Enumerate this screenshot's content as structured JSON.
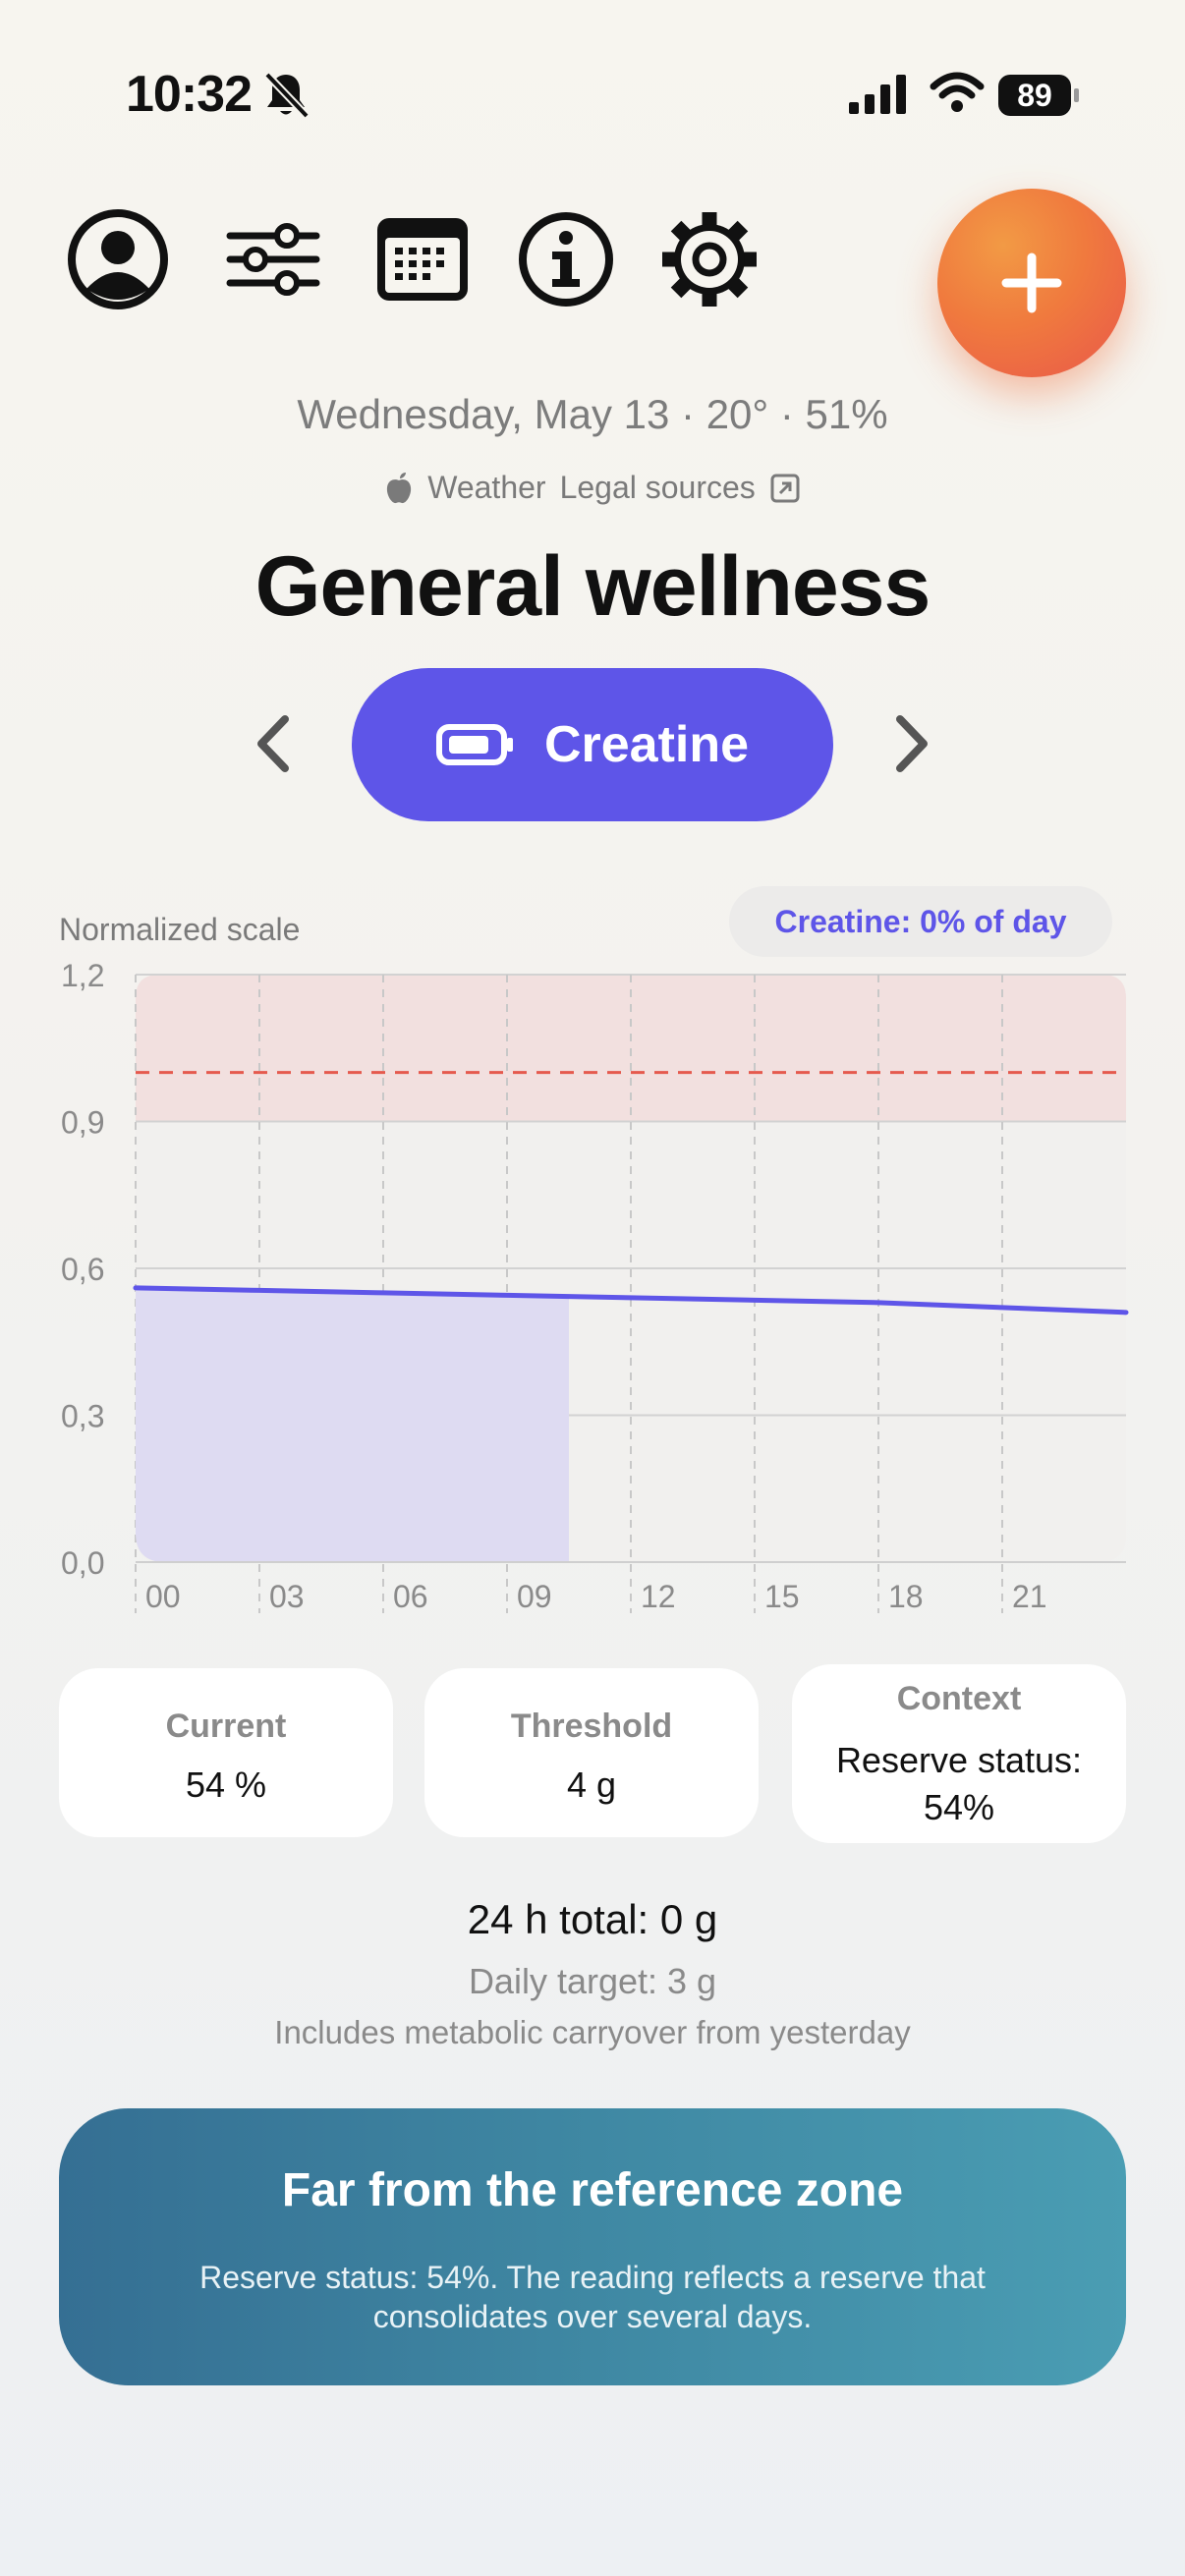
{
  "status_bar": {
    "time": "10:32",
    "battery": "89",
    "icons": [
      "bell-slash-icon",
      "signal-icon",
      "wifi-icon",
      "battery-icon"
    ]
  },
  "toolbar": {
    "icons": [
      "profile-icon",
      "sliders-icon",
      "calendar-icon",
      "info-icon",
      "gear-icon",
      "plus-icon"
    ]
  },
  "header": {
    "date_line": "Wednesday, May 13 · 20° · 51%",
    "weather_label": "Weather",
    "legal_sources_label": "Legal sources",
    "title": "General wellness"
  },
  "selector": {
    "label": "Creatine",
    "icon": "battery-outline-icon"
  },
  "chart": {
    "scale_label": "Normalized scale",
    "badge": "Creatine: 0% of day"
  },
  "chart_data": {
    "type": "line",
    "x": [
      "00",
      "03",
      "06",
      "09",
      "12",
      "15",
      "18",
      "21",
      "24"
    ],
    "ylim": [
      0,
      1.2
    ],
    "yticks": [
      "0,0",
      "0,3",
      "0,6",
      "0,9",
      "1,2"
    ],
    "xticks": [
      "00",
      "03",
      "06",
      "09",
      "12",
      "15",
      "18",
      "21"
    ],
    "series": [
      {
        "values": [
          0.56,
          0.555,
          0.55,
          0.545,
          0.54,
          0.535,
          0.53,
          0.52,
          0.51
        ]
      }
    ],
    "filled_until_hour": 10.5,
    "reference_zone": [
      0.9,
      1.2
    ],
    "reference_line": 1.0,
    "colors": {
      "line": "#5e55e8",
      "fill": "#dedbf2",
      "zone": "#f2e0df",
      "reference_line": "#e55a4e"
    },
    "grid": true
  },
  "stats": {
    "current_label": "Current",
    "current_value": "54 %",
    "threshold_label": "Threshold",
    "threshold_value": "4 g",
    "context_label": "Context",
    "context_value": "Reserve status: 54%"
  },
  "totals": {
    "total_line": "24 h total: 0 g",
    "target_line": "Daily target: 3 g",
    "carryover_line": "Includes metabolic carryover from yesterday"
  },
  "banner": {
    "title": "Far from the reference zone",
    "body": "Reserve status: 54%. The reading reflects a reserve that consolidates over several days."
  },
  "colors": {
    "accent": "#5e55e8",
    "add_button": "#f07a3e",
    "banner_start": "#356f93",
    "banner_end": "#4a9db3"
  }
}
